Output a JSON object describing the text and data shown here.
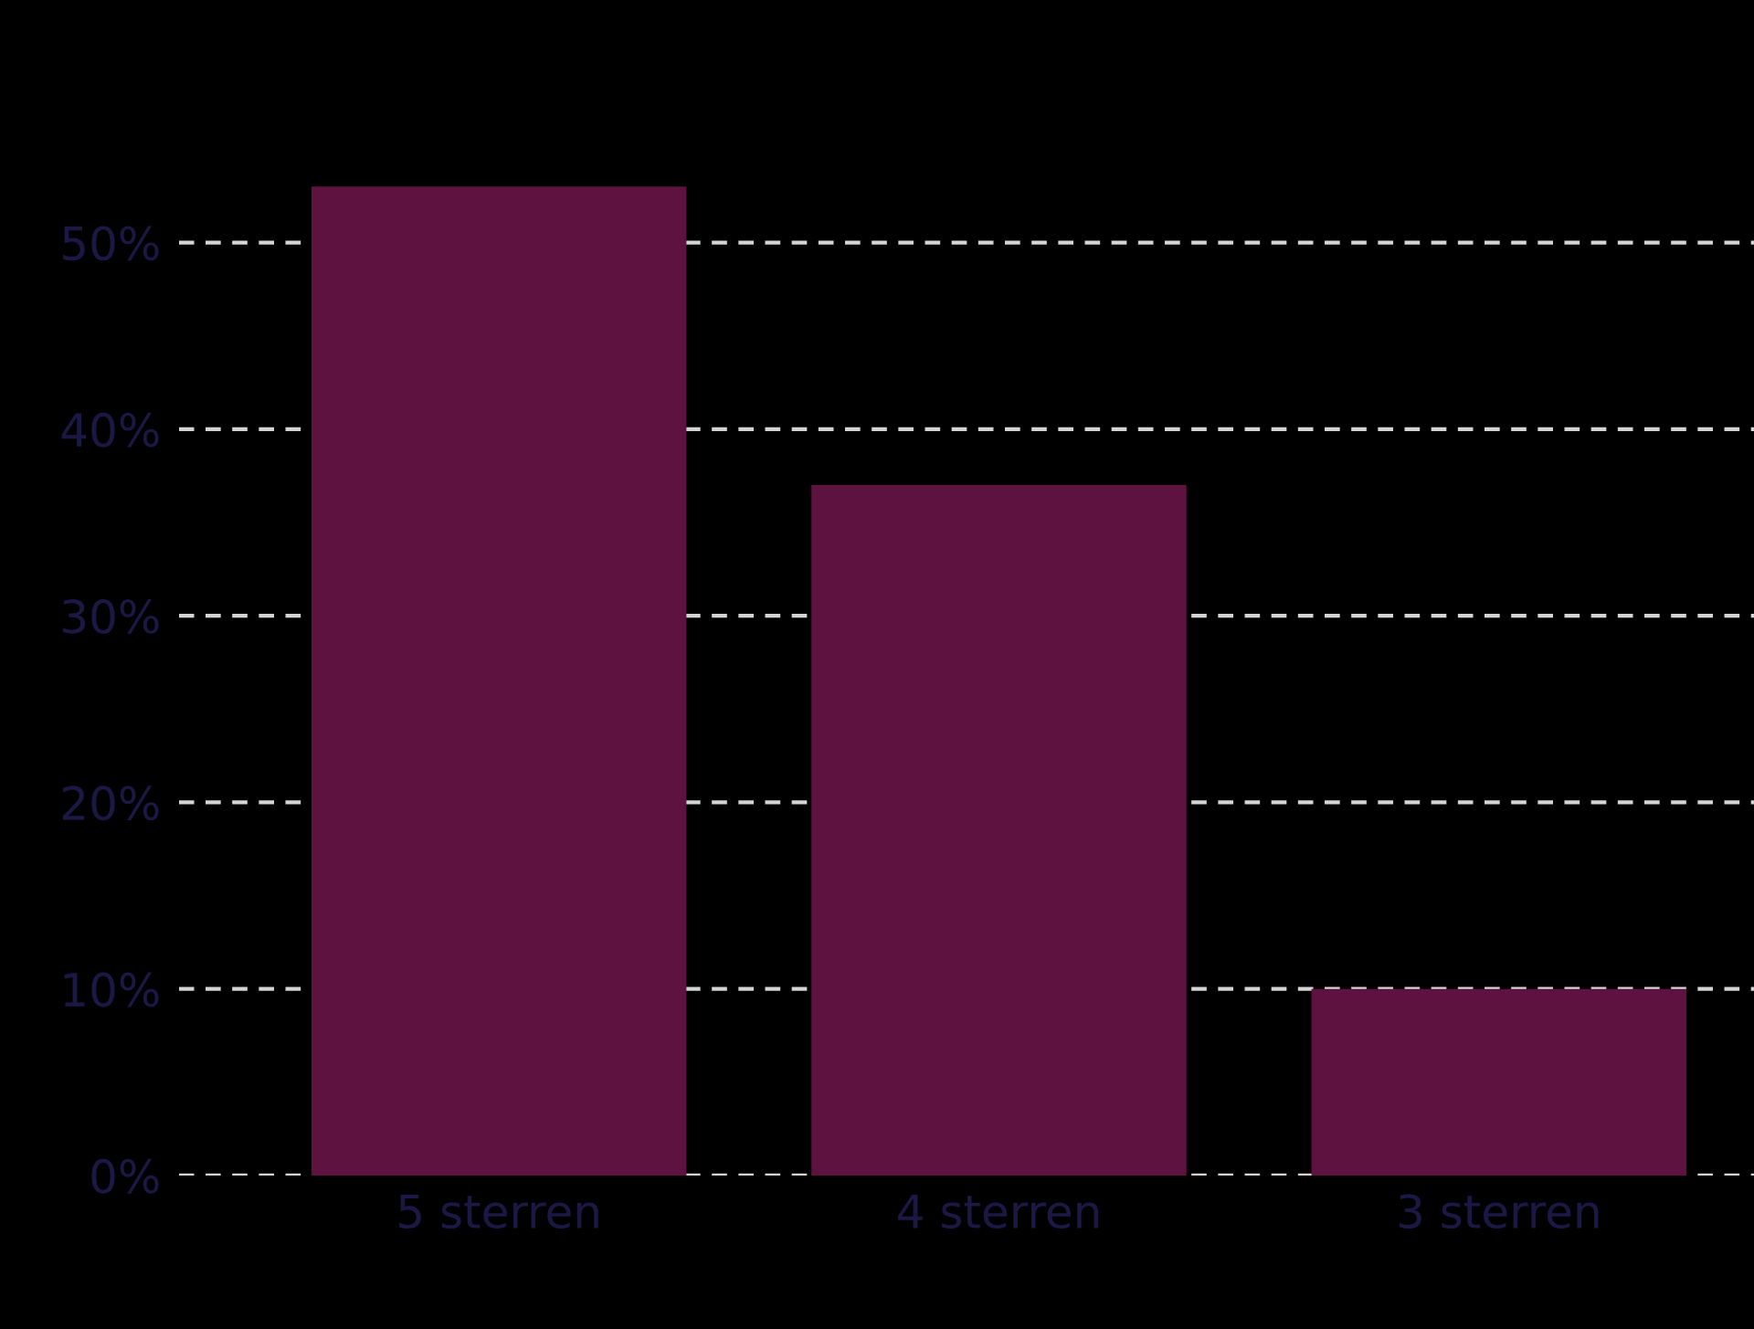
{
  "chart_data": {
    "type": "bar",
    "categories": [
      "5 sterren",
      "4 sterren",
      "3 sterren"
    ],
    "values": [
      53,
      37,
      10
    ],
    "color": "#5e1240",
    "ylim": [
      0,
      63
    ],
    "yticks": [
      {
        "value": 0,
        "label": "0%"
      },
      {
        "value": 10,
        "label": "10%"
      },
      {
        "value": 20,
        "label": "20%"
      },
      {
        "value": 30,
        "label": "30%"
      },
      {
        "value": 40,
        "label": "40%"
      },
      {
        "value": 50,
        "label": "50%"
      }
    ],
    "grid": "y",
    "line_style": "dashed"
  }
}
